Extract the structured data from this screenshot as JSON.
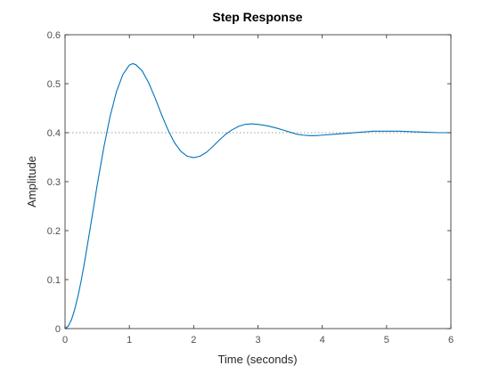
{
  "chart_data": {
    "type": "line",
    "title": "Step Response",
    "xlabel": "Time (seconds)",
    "ylabel": "Amplitude",
    "xlim": [
      0,
      6
    ],
    "ylim": [
      0,
      0.6
    ],
    "xticks": [
      "0",
      "1",
      "2",
      "3",
      "4",
      "5",
      "6"
    ],
    "yticks": [
      "0",
      "0.1",
      "0.2",
      "0.3",
      "0.4",
      "0.5",
      "0.6"
    ],
    "grid": false,
    "legend": "none",
    "steady_state": 0.4,
    "colors": {
      "series": "#0072bd",
      "reference": "#808080",
      "axes": "#262626"
    },
    "series": [
      {
        "x": [
          0,
          0.05,
          0.1,
          0.15,
          0.2,
          0.25,
          0.3,
          0.4,
          0.5,
          0.6,
          0.7,
          0.8,
          0.9,
          1.0,
          1.05,
          1.1,
          1.2,
          1.3,
          1.4,
          1.5,
          1.6,
          1.7,
          1.8,
          1.9,
          2.0,
          2.1,
          2.2,
          2.3,
          2.4,
          2.5,
          2.6,
          2.7,
          2.8,
          2.9,
          3.0,
          3.15,
          3.3,
          3.4,
          3.5,
          3.6,
          3.7,
          3.8,
          3.9,
          4.0,
          4.2,
          4.4,
          4.6,
          4.8,
          5.0,
          5.2,
          5.4,
          5.6,
          5.8,
          6.0
        ],
        "y": [
          0,
          0.005,
          0.018,
          0.039,
          0.066,
          0.097,
          0.133,
          0.212,
          0.293,
          0.368,
          0.433,
          0.484,
          0.519,
          0.538,
          0.541,
          0.539,
          0.526,
          0.502,
          0.471,
          0.437,
          0.406,
          0.38,
          0.362,
          0.352,
          0.349,
          0.352,
          0.36,
          0.372,
          0.385,
          0.397,
          0.406,
          0.413,
          0.417,
          0.418,
          0.417,
          0.414,
          0.409,
          0.405,
          0.401,
          0.397,
          0.395,
          0.394,
          0.394,
          0.395,
          0.397,
          0.399,
          0.401,
          0.403,
          0.403,
          0.403,
          0.402,
          0.401,
          0.4,
          0.4
        ]
      }
    ]
  }
}
